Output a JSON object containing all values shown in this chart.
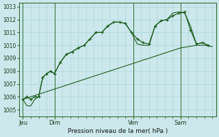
{
  "bg_color": "#cce8ec",
  "grid_color": "#aad4d8",
  "line_color": "#1a5c1a",
  "xlabel": "Pression niveau de la mer( hPa )",
  "ylim": [
    1004.5,
    1013.3
  ],
  "yticks": [
    1005,
    1006,
    1007,
    1008,
    1009,
    1010,
    1011,
    1012,
    1013
  ],
  "day_labels": [
    "Jeu",
    "Dim",
    "Ven",
    "Sam"
  ],
  "day_positions": [
    0,
    16,
    56,
    80
  ],
  "xlim": [
    -2,
    98
  ],
  "minor_step": 4,
  "series1_x": [
    0,
    2,
    4,
    6,
    8,
    10,
    12,
    14,
    16,
    19,
    22,
    25,
    28,
    31,
    34,
    37,
    40,
    43,
    46,
    49,
    52,
    55,
    58,
    61,
    64,
    67,
    70,
    73,
    76,
    79,
    82,
    85,
    88,
    91,
    94
  ],
  "series1_y": [
    1005.8,
    1006.0,
    1005.8,
    1006.0,
    1006.0,
    1007.5,
    1007.8,
    1008.0,
    1007.8,
    1008.7,
    1009.3,
    1009.5,
    1009.8,
    1010.0,
    1010.5,
    1011.0,
    1011.0,
    1011.5,
    1011.8,
    1011.8,
    1011.7,
    1011.0,
    1010.5,
    1010.2,
    1010.1,
    1011.5,
    1011.9,
    1012.0,
    1012.3,
    1012.5,
    1012.6,
    1011.2,
    1010.1,
    1010.2,
    1010.0
  ],
  "series2_x": [
    0,
    2,
    4,
    6,
    8,
    10,
    12,
    14,
    16,
    19,
    22,
    25,
    28,
    31,
    34,
    37,
    40,
    43,
    46,
    49,
    52,
    55,
    58,
    61,
    64,
    67,
    70,
    73,
    76,
    79,
    82,
    85,
    88,
    91,
    94
  ],
  "series2_y": [
    1005.8,
    1005.3,
    1005.3,
    1005.8,
    1006.0,
    1007.5,
    1007.8,
    1008.0,
    1007.8,
    1008.7,
    1009.3,
    1009.5,
    1009.8,
    1010.0,
    1010.5,
    1011.0,
    1011.0,
    1011.5,
    1011.8,
    1011.8,
    1011.7,
    1011.0,
    1010.1,
    1010.0,
    1010.0,
    1011.5,
    1011.9,
    1012.0,
    1012.5,
    1012.6,
    1012.5,
    1011.5,
    1010.1,
    1010.2,
    1010.0
  ],
  "series3_x": [
    0,
    4,
    8,
    12,
    16,
    20,
    24,
    28,
    32,
    36,
    40,
    44,
    48,
    52,
    56,
    60,
    64,
    68,
    72,
    76,
    80,
    84,
    88,
    92,
    96
  ],
  "series3_y": [
    1005.8,
    1006.0,
    1006.2,
    1006.4,
    1006.6,
    1006.8,
    1007.0,
    1007.2,
    1007.4,
    1007.6,
    1007.8,
    1008.0,
    1008.2,
    1008.4,
    1008.6,
    1008.8,
    1009.0,
    1009.2,
    1009.4,
    1009.6,
    1009.8,
    1009.9,
    1010.0,
    1010.0,
    1009.9
  ]
}
